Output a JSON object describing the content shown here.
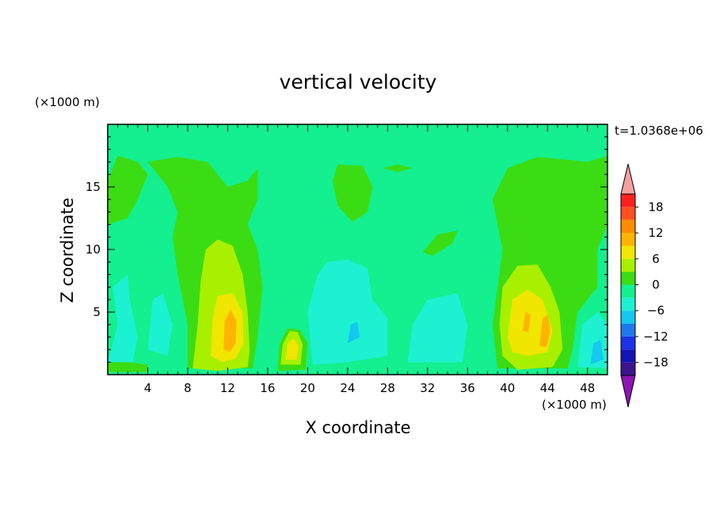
{
  "chart_data": {
    "type": "heatmap",
    "title": "vertical velocity",
    "xlabel": "X coordinate",
    "ylabel": "Z coordinate",
    "x_unit": "(×1000 m)",
    "y_unit": "(×1000 m)",
    "time_label": "t=1.0368e+06",
    "xlim": [
      0,
      50
    ],
    "ylim": [
      0,
      20
    ],
    "x_ticks": [
      4,
      8,
      12,
      16,
      20,
      24,
      28,
      32,
      36,
      40,
      44,
      48
    ],
    "y_ticks": [
      5,
      10,
      15
    ],
    "colorbar": {
      "tick_labels": [
        "18",
        "12",
        "6",
        "0",
        "−6",
        "−12",
        "−18"
      ],
      "tick_values": [
        18,
        12,
        6,
        0,
        -6,
        -12,
        -18
      ],
      "range": [
        -21,
        21
      ],
      "extend": "both",
      "levels": [
        {
          "lo": 18,
          "hi": 21,
          "color": "#ff2020"
        },
        {
          "lo": 15,
          "hi": 18,
          "color": "#ff5020"
        },
        {
          "lo": 12,
          "hi": 15,
          "color": "#ff8c00"
        },
        {
          "lo": 9,
          "hi": 12,
          "color": "#ffb400"
        },
        {
          "lo": 6,
          "hi": 9,
          "color": "#f0e600"
        },
        {
          "lo": 3,
          "hi": 6,
          "color": "#a8f000"
        },
        {
          "lo": 0,
          "hi": 3,
          "color": "#3cdc14"
        },
        {
          "lo": -3,
          "hi": 0,
          "color": "#14ef8f"
        },
        {
          "lo": -6,
          "hi": -3,
          "color": "#1ef0d2"
        },
        {
          "lo": -9,
          "hi": -6,
          "color": "#14c8f0"
        },
        {
          "lo": -12,
          "hi": -9,
          "color": "#1e78f0"
        },
        {
          "lo": -15,
          "hi": -12,
          "color": "#1e32e6"
        },
        {
          "lo": -18,
          "hi": -15,
          "color": "#1414b4"
        },
        {
          "lo": -21,
          "hi": -18,
          "color": "#3c148c"
        }
      ],
      "over_color": "#f5a0a0",
      "under_color": "#8c14b4"
    },
    "background_color": "#14ef8f",
    "regions": [
      {
        "level": 1,
        "color": "#3cdc14",
        "points": [
          [
            0,
            15.5
          ],
          [
            1,
            17.5
          ],
          [
            3,
            17
          ],
          [
            4,
            16
          ],
          [
            3,
            14
          ],
          [
            2,
            12.5
          ],
          [
            0,
            12
          ]
        ]
      },
      {
        "level": 1,
        "color": "#3cdc14",
        "points": [
          [
            4,
            17
          ],
          [
            7,
            17.4
          ],
          [
            10,
            17
          ],
          [
            12,
            15
          ],
          [
            14,
            15.5
          ],
          [
            15,
            16.5
          ],
          [
            15,
            14
          ],
          [
            14,
            12
          ],
          [
            15,
            10
          ],
          [
            15.5,
            7
          ],
          [
            15,
            3
          ],
          [
            14.5,
            0.5
          ],
          [
            8,
            0.5
          ],
          [
            8,
            4
          ],
          [
            7,
            8
          ],
          [
            6.5,
            11
          ],
          [
            7,
            13
          ],
          [
            6,
            15
          ]
        ]
      },
      {
        "level": 1,
        "color": "#3cdc14",
        "points": [
          [
            22.5,
            15.5
          ],
          [
            23,
            16.8
          ],
          [
            25.5,
            16.7
          ],
          [
            26.5,
            15
          ],
          [
            26,
            13
          ],
          [
            24.5,
            12.2
          ],
          [
            23,
            13.5
          ]
        ]
      },
      {
        "level": 1,
        "color": "#3cdc14",
        "points": [
          [
            27.5,
            16.5
          ],
          [
            29,
            16.8
          ],
          [
            30.5,
            16.5
          ],
          [
            29,
            16.2
          ]
        ]
      },
      {
        "level": 1,
        "color": "#3cdc14",
        "points": [
          [
            31.5,
            9.8
          ],
          [
            33,
            11.2
          ],
          [
            35,
            11.5
          ],
          [
            34.5,
            10.5
          ],
          [
            32.5,
            9.5
          ]
        ]
      },
      {
        "level": 1,
        "color": "#3cdc14",
        "points": [
          [
            38.5,
            14
          ],
          [
            40,
            16.5
          ],
          [
            43,
            17.4
          ],
          [
            48,
            17
          ],
          [
            50,
            17.5
          ],
          [
            50,
            12
          ],
          [
            49,
            10
          ],
          [
            49,
            7
          ],
          [
            47,
            5
          ],
          [
            46.5,
            2
          ],
          [
            46,
            0.5
          ],
          [
            39,
            0.5
          ],
          [
            38.5,
            4
          ],
          [
            39,
            7
          ],
          [
            39.5,
            10
          ],
          [
            39,
            12
          ]
        ]
      },
      {
        "level": 1,
        "color": "#3cdc14",
        "points": [
          [
            17,
            0.3
          ],
          [
            17.2,
            2.5
          ],
          [
            18,
            3.7
          ],
          [
            19.2,
            3.6
          ],
          [
            20,
            2.5
          ],
          [
            19.8,
            0.4
          ]
        ]
      },
      {
        "level": 1,
        "color": "#3cdc14",
        "points": [
          [
            0,
            0.2
          ],
          [
            4,
            0.2
          ],
          [
            4,
            0.8
          ],
          [
            0,
            1.2
          ]
        ]
      },
      {
        "level": 2,
        "color": "#a8f000",
        "points": [
          [
            8.5,
            0.5
          ],
          [
            9,
            4
          ],
          [
            9.3,
            7.5
          ],
          [
            9.8,
            10
          ],
          [
            11,
            10.8
          ],
          [
            12.5,
            10.3
          ],
          [
            13.5,
            8
          ],
          [
            14,
            5
          ],
          [
            14.2,
            2
          ],
          [
            14,
            0.6
          ],
          [
            11,
            0.3
          ]
        ]
      },
      {
        "level": 2,
        "color": "#a8f000",
        "points": [
          [
            39.5,
            1.5
          ],
          [
            39.2,
            4
          ],
          [
            39.5,
            7
          ],
          [
            41,
            8.7
          ],
          [
            43,
            8.8
          ],
          [
            44.3,
            7
          ],
          [
            45.2,
            5
          ],
          [
            45.5,
            2
          ],
          [
            44.5,
            0.6
          ],
          [
            41,
            0.4
          ]
        ]
      },
      {
        "level": 2,
        "color": "#a8f000",
        "points": [
          [
            17.3,
            0.8
          ],
          [
            17.5,
            2.4
          ],
          [
            18.2,
            3.5
          ],
          [
            19,
            3.4
          ],
          [
            19.5,
            2.4
          ],
          [
            19.3,
            0.8
          ]
        ]
      },
      {
        "level": 3,
        "color": "#f0e600",
        "points": [
          [
            10.3,
            1.5
          ],
          [
            10.5,
            4.5
          ],
          [
            11,
            6.3
          ],
          [
            12.5,
            6.5
          ],
          [
            13.5,
            5
          ],
          [
            13.6,
            2.5
          ],
          [
            12.8,
            1.3
          ],
          [
            11.5,
            1
          ]
        ]
      },
      {
        "level": 3,
        "color": "#f0e600",
        "points": [
          [
            40,
            3
          ],
          [
            40.5,
            6
          ],
          [
            42,
            6.8
          ],
          [
            43.5,
            6
          ],
          [
            44.5,
            3.5
          ],
          [
            44,
            1.8
          ],
          [
            42,
            1.5
          ],
          [
            40.5,
            1.8
          ]
        ]
      },
      {
        "level": 3,
        "color": "#f0e600",
        "points": [
          [
            17.8,
            1.2
          ],
          [
            18,
            2.5
          ],
          [
            18.6,
            2.9
          ],
          [
            19.1,
            2.3
          ],
          [
            18.9,
            1.2
          ]
        ]
      },
      {
        "level": 4,
        "color": "#ffb400",
        "points": [
          [
            11.6,
            2
          ],
          [
            11.7,
            4.3
          ],
          [
            12.3,
            5.2
          ],
          [
            12.9,
            4.3
          ],
          [
            12.8,
            2.5
          ],
          [
            12.2,
            1.8
          ]
        ]
      },
      {
        "level": 4,
        "color": "#ffb400",
        "points": [
          [
            43.2,
            2.3
          ],
          [
            43.5,
            4.5
          ],
          [
            44,
            4.8
          ],
          [
            44.3,
            3.5
          ],
          [
            43.9,
            2.2
          ]
        ]
      },
      {
        "level": 4,
        "color": "#ffb400",
        "points": [
          [
            41.5,
            3.5
          ],
          [
            41.8,
            5
          ],
          [
            42.3,
            4.8
          ],
          [
            42.1,
            3.4
          ]
        ]
      },
      {
        "level": -1,
        "color": "#1ef0d2",
        "points": [
          [
            0,
            1
          ],
          [
            1,
            4
          ],
          [
            0.5,
            7
          ],
          [
            2,
            8
          ],
          [
            2.2,
            6
          ],
          [
            3,
            3
          ],
          [
            2.5,
            1
          ]
        ]
      },
      {
        "level": -1,
        "color": "#1ef0d2",
        "points": [
          [
            4,
            2
          ],
          [
            4.5,
            6
          ],
          [
            5.5,
            6.5
          ],
          [
            6.5,
            4
          ],
          [
            6,
            1.5
          ]
        ]
      },
      {
        "level": -1,
        "color": "#1ef0d2",
        "points": [
          [
            20.5,
            0.8
          ],
          [
            20,
            5
          ],
          [
            21,
            8
          ],
          [
            22,
            9
          ],
          [
            24,
            9.2
          ],
          [
            26,
            8.5
          ],
          [
            26.5,
            6
          ],
          [
            28,
            4.5
          ],
          [
            28,
            1.5
          ],
          [
            24,
            1
          ]
        ]
      },
      {
        "level": -1,
        "color": "#1ef0d2",
        "points": [
          [
            30,
            1
          ],
          [
            30.5,
            4
          ],
          [
            32,
            6
          ],
          [
            35,
            6.5
          ],
          [
            36,
            4
          ],
          [
            35.5,
            1
          ]
        ]
      },
      {
        "level": -1,
        "color": "#1ef0d2",
        "points": [
          [
            47,
            0.6
          ],
          [
            47.5,
            4
          ],
          [
            49,
            5
          ],
          [
            50,
            4
          ],
          [
            50,
            0.5
          ]
        ]
      },
      {
        "level": -2,
        "color": "#14c8f0",
        "points": [
          [
            48.3,
            0.8
          ],
          [
            48.6,
            2.5
          ],
          [
            49.3,
            2.8
          ],
          [
            49.6,
            1.2
          ]
        ]
      },
      {
        "level": -2,
        "color": "#14c8f0",
        "points": [
          [
            24,
            2.5
          ],
          [
            24.3,
            4
          ],
          [
            25,
            4.2
          ],
          [
            25.2,
            3
          ]
        ]
      }
    ]
  }
}
